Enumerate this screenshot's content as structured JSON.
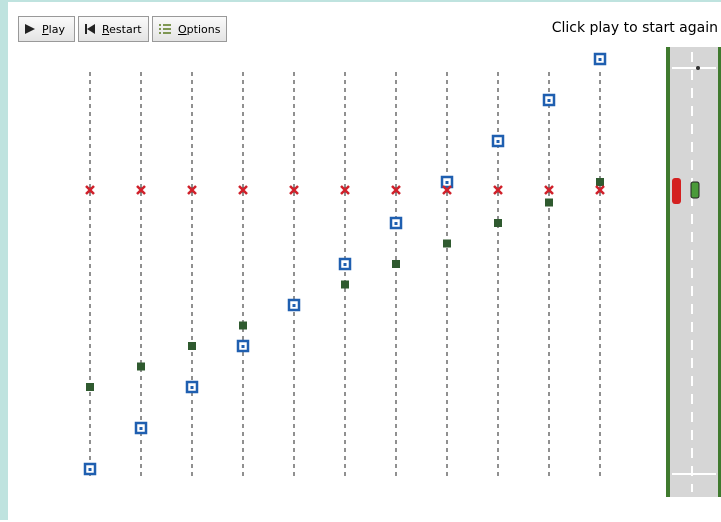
{
  "toolbar": {
    "play": "Play",
    "restart": "Restart",
    "options": "Options"
  },
  "status": "Click play to start again"
}
